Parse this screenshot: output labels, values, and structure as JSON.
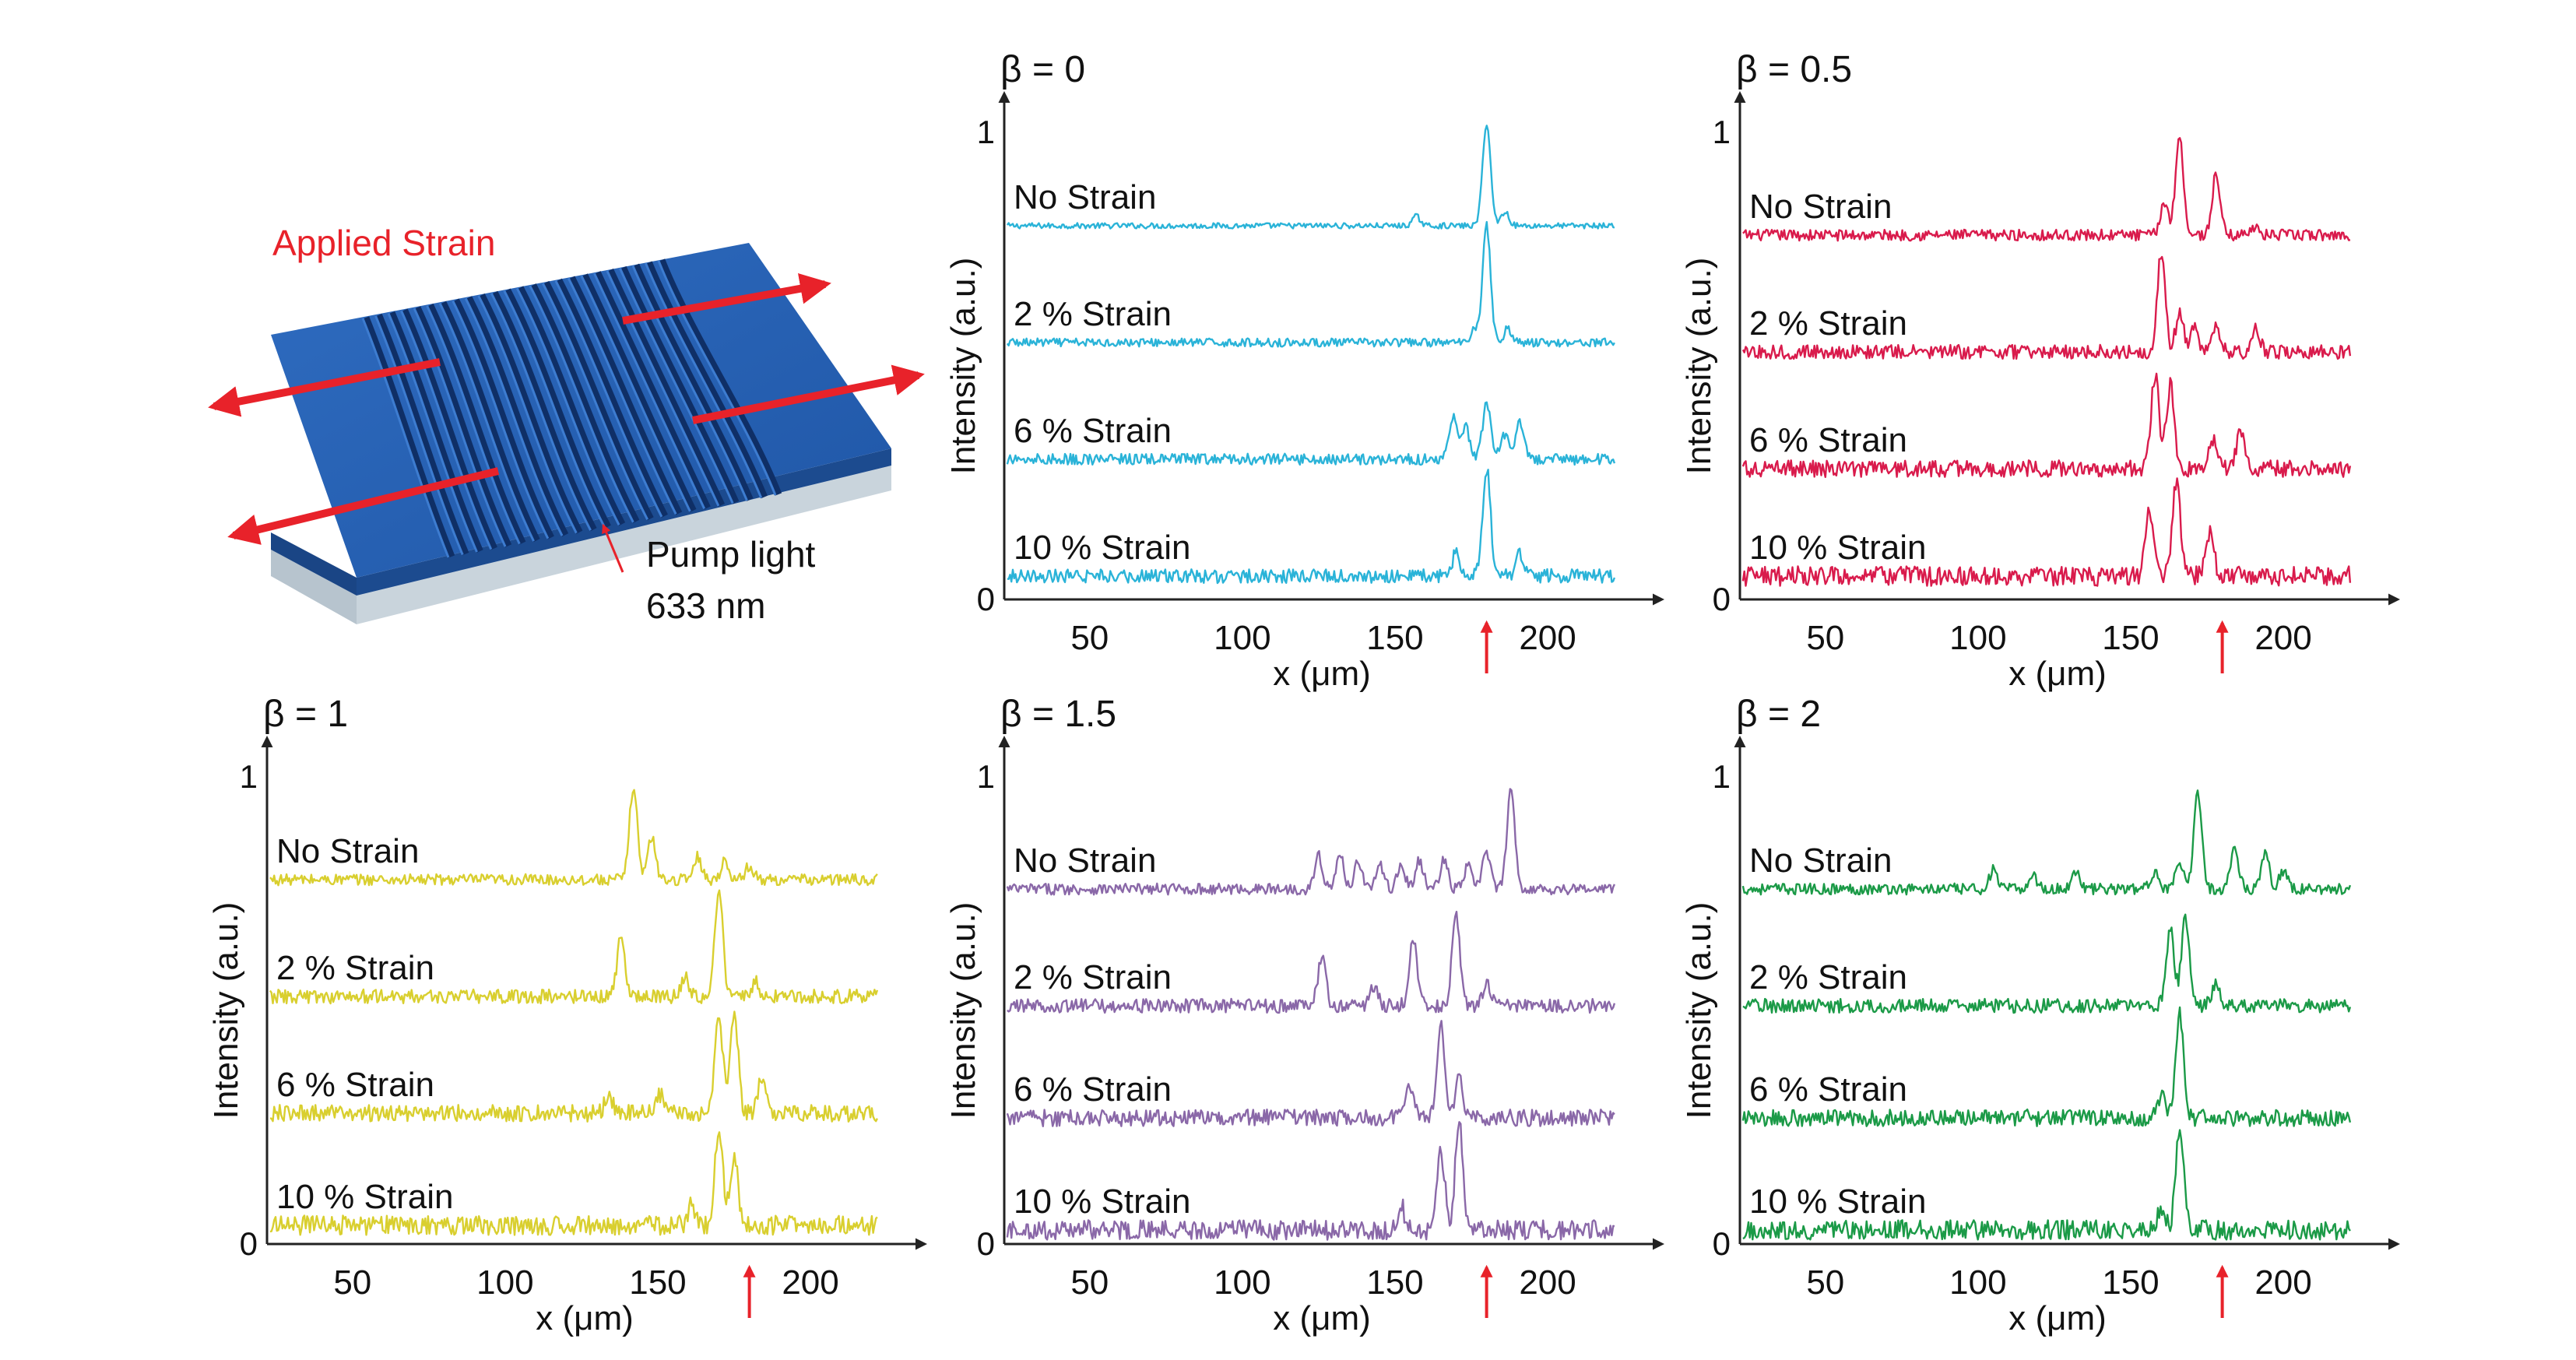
{
  "device": {
    "strain_label": "Applied Strain",
    "pump_label_line1": "Pump light",
    "pump_label_line2": "633 nm",
    "colors": {
      "top": "#2b63b3",
      "side": "#1e4f96",
      "substrate": "#c9d4dc",
      "arrow": "#e8222a"
    }
  },
  "chart_data": [
    {
      "type": "line",
      "title": "β = 0",
      "color": "#2ab3d8",
      "xlabel": "x (μm)",
      "ylabel": "Intensity (a.u.)",
      "x_ticks": [
        50,
        100,
        150,
        200
      ],
      "y_ticks": [
        0,
        1
      ],
      "xlim": [
        22,
        226
      ],
      "ylim": [
        0,
        1
      ],
      "pump_marker_x": 180,
      "series": [
        {
          "name": "No Strain",
          "baseline": 0.8,
          "peaks": [
            [
              180,
              0.22
            ],
            [
              157,
              0.02
            ],
            [
              186,
              0.03
            ]
          ],
          "x_end": 222
        },
        {
          "name": "2 % Strain",
          "baseline": 0.55,
          "peaks": [
            [
              180,
              0.25
            ],
            [
              176,
              0.03
            ],
            [
              187,
              0.03
            ]
          ],
          "x_end": 222
        },
        {
          "name": "6 % Strain",
          "baseline": 0.3,
          "peaks": [
            [
              169,
              0.09
            ],
            [
              173,
              0.07
            ],
            [
              180,
              0.12
            ],
            [
              186,
              0.05
            ],
            [
              191,
              0.08
            ]
          ],
          "x_end": 222
        },
        {
          "name": "10 % Strain",
          "baseline": 0.05,
          "peaks": [
            [
              170,
              0.05
            ],
            [
              180,
              0.23
            ],
            [
              191,
              0.05
            ]
          ],
          "x_end": 222
        }
      ]
    },
    {
      "type": "line",
      "title": "β = 0.5",
      "color": "#d91b4c",
      "xlabel": "x (μm)",
      "ylabel": "Intensity (a.u.)",
      "x_ticks": [
        50,
        100,
        150,
        200
      ],
      "y_ticks": [
        0,
        1
      ],
      "xlim": [
        22,
        226
      ],
      "ylim": [
        0,
        1
      ],
      "pump_marker_x": 180,
      "series": [
        {
          "name": "No Strain",
          "baseline": 0.78,
          "peaks": [
            [
              161,
              0.07
            ],
            [
              166,
              0.21
            ],
            [
              178,
              0.13
            ],
            [
              190,
              0.02
            ]
          ],
          "x_end": 222
        },
        {
          "name": "2 % Strain",
          "baseline": 0.53,
          "peaks": [
            [
              160,
              0.21
            ],
            [
              166,
              0.08
            ],
            [
              171,
              0.05
            ],
            [
              178,
              0.05
            ],
            [
              191,
              0.05
            ]
          ],
          "x_end": 222
        },
        {
          "name": "6 % Strain",
          "baseline": 0.28,
          "peaks": [
            [
              158,
              0.2
            ],
            [
              163,
              0.18
            ],
            [
              177,
              0.06
            ],
            [
              186,
              0.08
            ]
          ],
          "x_end": 222
        },
        {
          "name": "10 % Strain",
          "baseline": 0.05,
          "peaks": [
            [
              156,
              0.14
            ],
            [
              165,
              0.2
            ],
            [
              176,
              0.09
            ]
          ],
          "x_end": 222
        }
      ]
    },
    {
      "type": "line",
      "title": "β = 1",
      "color": "#d9cf2f",
      "xlabel": "x (μm)",
      "ylabel": "Intensity (a.u.)",
      "x_ticks": [
        50,
        100,
        150,
        200
      ],
      "y_ticks": [
        0,
        1
      ],
      "xlim": [
        22,
        226
      ],
      "ylim": [
        0,
        1
      ],
      "pump_marker_x": 180,
      "series": [
        {
          "name": "No Strain",
          "baseline": 0.78,
          "peaks": [
            [
              142,
              0.2
            ],
            [
              148,
              0.09
            ],
            [
              163,
              0.05
            ],
            [
              172,
              0.04
            ],
            [
              180,
              0.03
            ]
          ],
          "x_end": 222
        },
        {
          "name": "2 % Strain",
          "baseline": 0.53,
          "peaks": [
            [
              138,
              0.13
            ],
            [
              159,
              0.04
            ],
            [
              170,
              0.23
            ],
            [
              182,
              0.03
            ]
          ],
          "x_end": 222
        },
        {
          "name": "6 % Strain",
          "baseline": 0.28,
          "peaks": [
            [
              134,
              0.04
            ],
            [
              151,
              0.04
            ],
            [
              170,
              0.2
            ],
            [
              175,
              0.22
            ],
            [
              184,
              0.07
            ]
          ],
          "x_end": 222
        },
        {
          "name": "10 % Strain",
          "baseline": 0.04,
          "peaks": [
            [
              161,
              0.04
            ],
            [
              170,
              0.2
            ],
            [
              175,
              0.15
            ]
          ],
          "x_end": 222
        }
      ]
    },
    {
      "type": "line",
      "title": "β = 1.5",
      "color": "#8a68a8",
      "xlabel": "x (μm)",
      "ylabel": "Intensity (a.u.)",
      "x_ticks": [
        50,
        100,
        150,
        200
      ],
      "y_ticks": [
        0,
        1
      ],
      "xlim": [
        22,
        226
      ],
      "ylim": [
        0,
        1
      ],
      "pump_marker_x": 180,
      "series": [
        {
          "name": "No Strain",
          "baseline": 0.76,
          "peaks": [
            [
              125,
              0.07
            ],
            [
              132,
              0.07
            ],
            [
              138,
              0.06
            ],
            [
              145,
              0.05
            ],
            [
              152,
              0.05
            ],
            [
              158,
              0.06
            ],
            [
              166,
              0.06
            ],
            [
              174,
              0.05
            ],
            [
              180,
              0.08
            ],
            [
              188,
              0.21
            ]
          ],
          "x_end": 222
        },
        {
          "name": "2 % Strain",
          "baseline": 0.51,
          "peaks": [
            [
              126,
              0.1
            ],
            [
              143,
              0.04
            ],
            [
              156,
              0.14
            ],
            [
              170,
              0.19
            ],
            [
              180,
              0.05
            ]
          ],
          "x_end": 222
        },
        {
          "name": "6 % Strain",
          "baseline": 0.27,
          "peaks": [
            [
              155,
              0.07
            ],
            [
              165,
              0.2
            ],
            [
              171,
              0.09
            ]
          ],
          "x_end": 222
        },
        {
          "name": "10 % Strain",
          "baseline": 0.03,
          "peaks": [
            [
              152,
              0.05
            ],
            [
              165,
              0.17
            ],
            [
              171,
              0.23
            ]
          ],
          "x_end": 222
        }
      ]
    },
    {
      "type": "line",
      "title": "β = 2",
      "color": "#1b9a47",
      "xlabel": "x (μm)",
      "ylabel": "Intensity (a.u.)",
      "x_ticks": [
        50,
        100,
        150,
        200
      ],
      "y_ticks": [
        0,
        1
      ],
      "xlim": [
        22,
        226
      ],
      "ylim": [
        0,
        1
      ],
      "pump_marker_x": 180,
      "series": [
        {
          "name": "No Strain",
          "baseline": 0.76,
          "peaks": [
            [
              105,
              0.04
            ],
            [
              118,
              0.03
            ],
            [
              132,
              0.04
            ],
            [
              158,
              0.04
            ],
            [
              166,
              0.05
            ],
            [
              172,
              0.21
            ],
            [
              184,
              0.09
            ],
            [
              194,
              0.08
            ],
            [
              200,
              0.04
            ]
          ],
          "x_end": 222
        },
        {
          "name": "2 % Strain",
          "baseline": 0.51,
          "peaks": [
            [
              163,
              0.16
            ],
            [
              168,
              0.19
            ],
            [
              178,
              0.05
            ]
          ],
          "x_end": 222
        },
        {
          "name": "6 % Strain",
          "baseline": 0.27,
          "peaks": [
            [
              160,
              0.05
            ],
            [
              166,
              0.22
            ]
          ],
          "x_end": 222
        },
        {
          "name": "10 % Strain",
          "baseline": 0.03,
          "peaks": [
            [
              160,
              0.04
            ],
            [
              166,
              0.22
            ]
          ],
          "x_end": 222
        }
      ]
    }
  ]
}
